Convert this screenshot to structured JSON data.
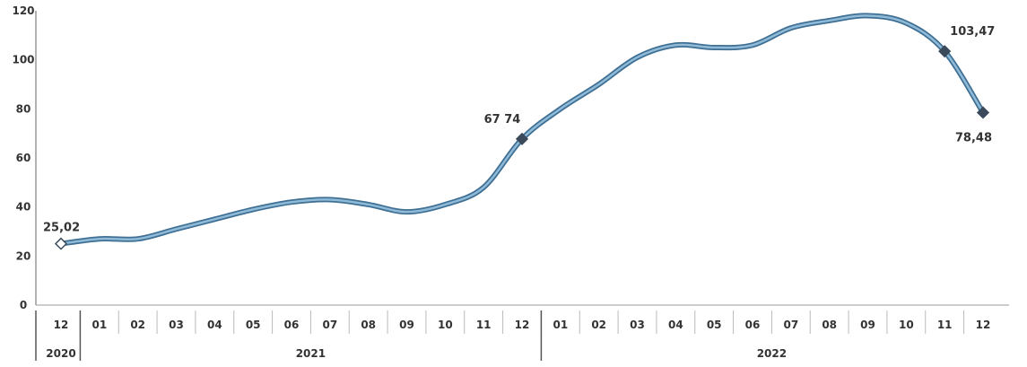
{
  "chart_data": {
    "type": "line",
    "title": "",
    "xlabel": "",
    "ylabel": "",
    "ylim": [
      0,
      120
    ],
    "y_ticks": [
      "0",
      "20",
      "40",
      "60",
      "80",
      "100",
      "120"
    ],
    "grid": false,
    "line_color": "#5b8db4",
    "x": [
      "12",
      "01",
      "02",
      "03",
      "04",
      "05",
      "06",
      "07",
      "08",
      "09",
      "10",
      "11",
      "12",
      "01",
      "02",
      "03",
      "04",
      "05",
      "06",
      "07",
      "08",
      "09",
      "10",
      "11",
      "12"
    ],
    "year_groups": [
      {
        "label": "2020",
        "start": 0,
        "end": 0
      },
      {
        "label": "2021",
        "start": 1,
        "end": 12
      },
      {
        "label": "2022",
        "start": 13,
        "end": 24
      }
    ],
    "series": [
      {
        "values": [
          25.02,
          27,
          27,
          31,
          35,
          39,
          42,
          43,
          41,
          38,
          41,
          48,
          67.74,
          80,
          90,
          101,
          106,
          105,
          106,
          113,
          116,
          118,
          115,
          103.47,
          78.48
        ]
      }
    ],
    "annotations": [
      {
        "index": 0,
        "text": "25,02",
        "marker": "open"
      },
      {
        "index": 12,
        "text": "67 74",
        "marker": "filled"
      },
      {
        "index": 23,
        "text": "103,47",
        "marker": "filled"
      },
      {
        "index": 24,
        "text": "78,48",
        "marker": "filled"
      }
    ]
  }
}
